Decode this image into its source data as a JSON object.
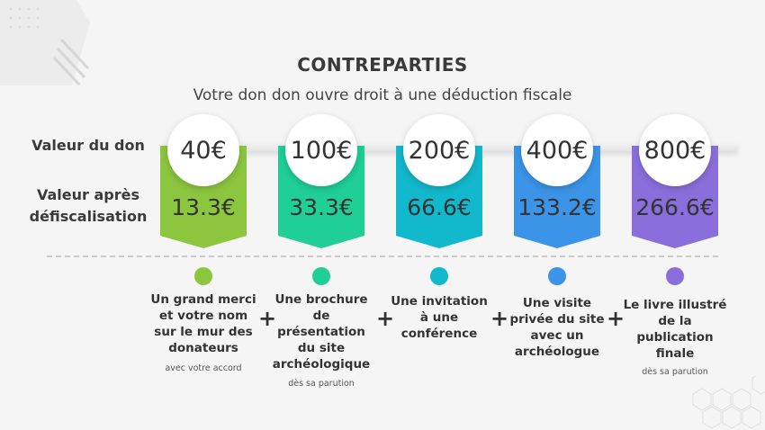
{
  "header": {
    "title": "CONTREPARTIES",
    "subtitle": "Votre don don ouvre droit à une déduction fiscale"
  },
  "labels": {
    "donation_value": "Valeur du don",
    "after_tax_line1": "Valeur après",
    "after_tax_line2": "défiscalisation"
  },
  "colors": {
    "tier1": "#8cc63f",
    "tier2": "#1fcf96",
    "tier3": "#12b8cc",
    "tier4": "#3b94e8",
    "tier5": "#8a6fdc"
  },
  "tiers": [
    {
      "donation": "40€",
      "after_tax": "13.3€",
      "reward": "Un grand merci et votre nom sur le mur des donateurs",
      "note": "avec votre accord"
    },
    {
      "donation": "100€",
      "after_tax": "33.3€",
      "reward": "Une brochure de présentation du site archéologique",
      "note": "dès sa parution"
    },
    {
      "donation": "200€",
      "after_tax": "66.6€",
      "reward": "Une invitation à une conférence",
      "note": ""
    },
    {
      "donation": "400€",
      "after_tax": "133.2€",
      "reward": "Une visite privée du site avec un archéologue",
      "note": ""
    },
    {
      "donation": "800€",
      "after_tax": "266.6€",
      "reward": "Le livre illustré de la publication finale",
      "note": "dès sa parution"
    }
  ],
  "separator": "+"
}
